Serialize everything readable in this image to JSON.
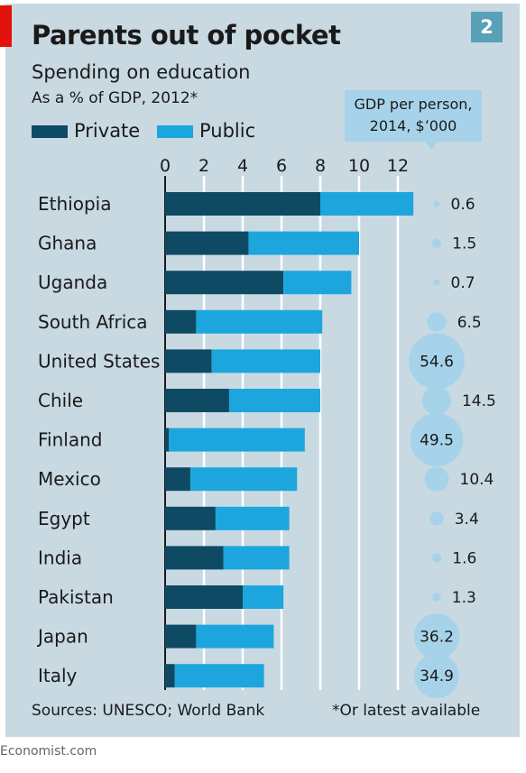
{
  "header": {
    "title": "Parents out of pocket",
    "subtitle": "Spending on education",
    "units": "As a % of GDP, 2012*",
    "chart_number": "2"
  },
  "legend": {
    "private": "Private",
    "public": "Public"
  },
  "gdp_callout": {
    "line1": "GDP per person,",
    "line2": "2014, $’000"
  },
  "footer": {
    "sources": "Sources: UNESCO; World Bank",
    "footnote": "*Or latest available",
    "brand": "Economist.com"
  },
  "colors": {
    "background": "#c8d9e2",
    "private": "#0f4a64",
    "public": "#1da6dd",
    "bubble": "#a7d3ea",
    "accent": "#e3120b",
    "badge": "#5aa0b8"
  },
  "chart_data": {
    "type": "bar",
    "stacked": true,
    "orientation": "horizontal",
    "title": "Parents out of pocket",
    "subtitle": "Spending on education",
    "unit": "As a % of GDP, 2012*",
    "xlim": [
      0,
      13
    ],
    "xticks": [
      0,
      2,
      4,
      6,
      8,
      10,
      12
    ],
    "grid": true,
    "legend_position": "top-left",
    "categories": [
      "Ethiopia",
      "Ghana",
      "Uganda",
      "South Africa",
      "United States",
      "Chile",
      "Finland",
      "Mexico",
      "Egypt",
      "India",
      "Pakistan",
      "Japan",
      "Italy"
    ],
    "series": [
      {
        "name": "Private",
        "values": [
          8.0,
          4.3,
          6.1,
          1.6,
          2.4,
          3.3,
          0.2,
          1.3,
          2.6,
          3.0,
          4.0,
          1.6,
          0.5
        ]
      },
      {
        "name": "Public",
        "values": [
          4.8,
          5.7,
          3.5,
          6.5,
          5.6,
          4.7,
          7.0,
          5.5,
          3.8,
          3.4,
          2.1,
          4.0,
          4.6
        ]
      }
    ],
    "bubble_series": {
      "name": "GDP per person, 2014, $’000",
      "values": [
        0.6,
        1.5,
        0.7,
        6.5,
        54.6,
        14.5,
        49.5,
        10.4,
        3.4,
        1.6,
        1.3,
        36.2,
        34.9
      ],
      "labels": [
        "0.6",
        "1.5",
        "0.7",
        "6.5",
        "54.6",
        "14.5",
        "49.5",
        "10.4",
        "3.4",
        "1.6",
        "1.3",
        "36.2",
        "34.9"
      ]
    }
  }
}
